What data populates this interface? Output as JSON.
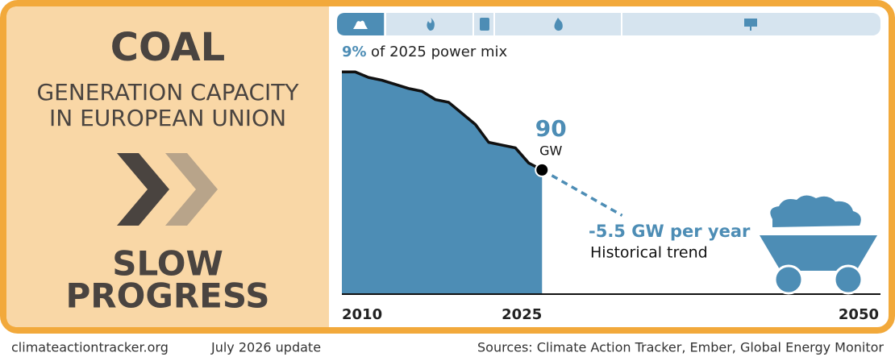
{
  "panel": {
    "title": "COAL",
    "subtitle_lines": [
      "GENERATION CAPACITY",
      "IN EUROPEAN UNION"
    ],
    "status_lines": [
      "SLOW",
      "PROGRESS"
    ]
  },
  "chart_data": {
    "type": "area",
    "share_value": "9%",
    "share_label": "of 2025 power mix",
    "x": [
      2010,
      2011,
      2012,
      2013,
      2014,
      2015,
      2016,
      2017,
      2018,
      2019,
      2020,
      2021,
      2022,
      2023,
      2024,
      2025
    ],
    "values": [
      161,
      161,
      157,
      155,
      152,
      149,
      147,
      141,
      139,
      131,
      123,
      110,
      108,
      106,
      95,
      90
    ],
    "unit": "GW",
    "color": "#4d8db5",
    "line_color": "#111111",
    "xlim": [
      2010,
      2050
    ],
    "xticks": [
      2010,
      2025,
      2050
    ],
    "ylim": [
      0,
      167
    ],
    "trend": {
      "value": -5.5,
      "label": "-5.5 GW per year",
      "note": "Historical trend"
    }
  },
  "footer": {
    "site": "climateactiontracker.org",
    "date": "July 2026 update",
    "sources": "Sources: Climate Action Tracker, Ember, Global Energy Monitor"
  }
}
